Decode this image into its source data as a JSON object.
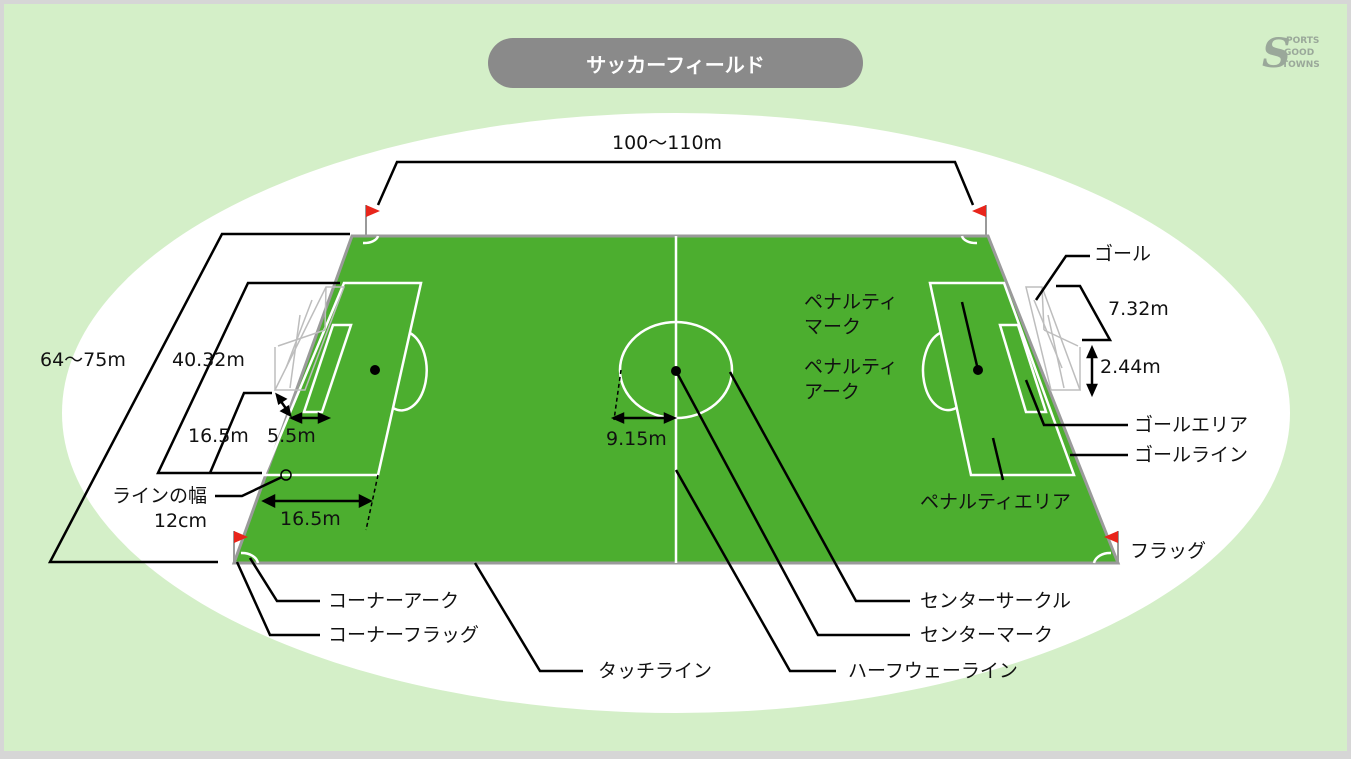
{
  "title": "サッカーフィールド",
  "logo": {
    "letter": "S",
    "words": [
      "PORTS",
      "GOOD",
      "TOWNS"
    ]
  },
  "colors": {
    "background": "#d4efc8",
    "frame": "#d6d6d6",
    "ellipse": "#ffffff",
    "pitch": "#4cae2f",
    "pitch_edge": "#9a9a9a",
    "lines": "#ffffff",
    "flag": "#e8251b",
    "leader": "#000000",
    "title_pill": "#8a8a8a"
  },
  "labels": {
    "length": "100〜110m",
    "width": "64〜75m",
    "penalty_width": "40.32m",
    "penalty_depth_v": "16.5m",
    "goal_area_depth": "5.5m",
    "line_width": "ラインの幅\n12cm",
    "penalty_depth_h": "16.5m",
    "circle_radius": "9.15m",
    "goal": "ゴール",
    "goal_width": "7.32m",
    "goal_height": "2.44m",
    "penalty_mark": "ペナルティ\nマーク",
    "penalty_arc": "ペナルティ\nアーク",
    "goal_area": "ゴールエリア",
    "goal_line": "ゴールライン",
    "penalty_area": "ペナルティエリア",
    "flag": "フラッグ",
    "corner_arc": "コーナーアーク",
    "corner_flag": "コーナーフラッグ",
    "touch_line": "タッチライン",
    "center_circle": "センターサークル",
    "center_mark": "センターマーク",
    "halfway_line": "ハーフウェーライン"
  }
}
